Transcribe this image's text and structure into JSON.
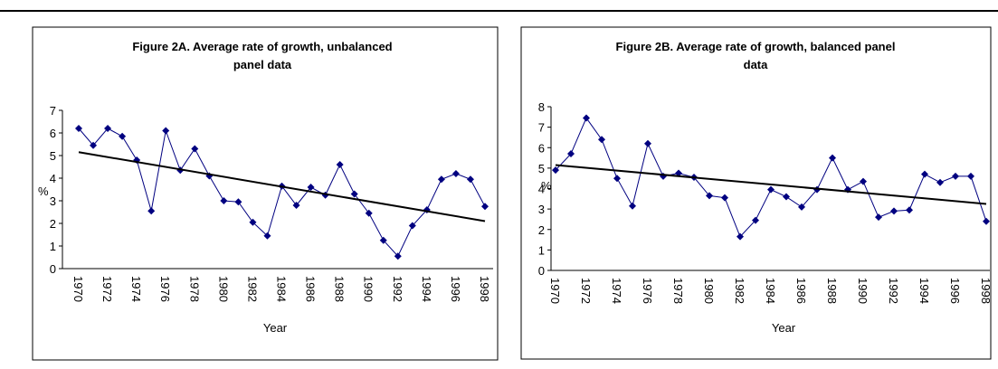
{
  "chart_data": [
    {
      "type": "line",
      "title": [
        "Figure 2A. Average rate of growth, unbalanced",
        "panel data"
      ],
      "x_label": "Year",
      "y_label": "%",
      "x": [
        1970,
        1971,
        1972,
        1973,
        1974,
        1975,
        1976,
        1977,
        1978,
        1979,
        1980,
        1981,
        1982,
        1983,
        1984,
        1985,
        1986,
        1987,
        1988,
        1989,
        1990,
        1991,
        1992,
        1993,
        1994,
        1995,
        1996,
        1997,
        1998
      ],
      "xlim": [
        1970,
        1998
      ],
      "xticks": [
        1970,
        1972,
        1974,
        1976,
        1978,
        1980,
        1982,
        1984,
        1986,
        1988,
        1990,
        1992,
        1994,
        1996,
        1998
      ],
      "ylim": [
        0,
        7
      ],
      "yticks": [
        0,
        1,
        2,
        3,
        4,
        5,
        6,
        7
      ],
      "series": [
        {
          "color": "#000080",
          "values": [
            6.2,
            5.45,
            6.2,
            5.85,
            4.8,
            2.55,
            6.1,
            4.35,
            5.3,
            4.1,
            3.0,
            2.95,
            2.05,
            1.45,
            3.65,
            2.8,
            3.6,
            3.25,
            4.6,
            3.3,
            2.45,
            1.25,
            0.55,
            1.9,
            2.6,
            3.95,
            4.2,
            3.95,
            2.75
          ]
        }
      ],
      "trendline": {
        "x": [
          1970,
          1998
        ],
        "values": [
          5.15,
          2.1
        ],
        "color": "#000000"
      }
    },
    {
      "type": "line",
      "title": [
        "Figure 2B. Average rate of growth, balanced panel",
        "data"
      ],
      "x_label": "Year",
      "y_label": "%",
      "x": [
        1970,
        1971,
        1972,
        1973,
        1974,
        1975,
        1976,
        1977,
        1978,
        1979,
        1980,
        1981,
        1982,
        1983,
        1984,
        1985,
        1986,
        1987,
        1988,
        1989,
        1990,
        1991,
        1992,
        1993,
        1994,
        1995,
        1996,
        1997,
        1998
      ],
      "xlim": [
        1970,
        1998
      ],
      "xticks": [
        1970,
        1972,
        1974,
        1976,
        1978,
        1980,
        1982,
        1984,
        1986,
        1988,
        1990,
        1992,
        1994,
        1996,
        1998
      ],
      "ylim": [
        0,
        8
      ],
      "yticks": [
        0,
        1,
        2,
        3,
        4,
        5,
        6,
        7,
        8
      ],
      "series": [
        {
          "color": "#000080",
          "values": [
            4.9,
            5.7,
            7.45,
            6.4,
            4.5,
            3.15,
            6.2,
            4.6,
            4.75,
            4.55,
            3.65,
            3.55,
            1.65,
            2.45,
            3.95,
            3.6,
            3.1,
            3.95,
            5.5,
            3.95,
            4.35,
            2.6,
            2.9,
            2.95,
            4.7,
            4.3,
            4.6,
            4.6,
            2.4
          ]
        }
      ],
      "trendline": {
        "x": [
          1970,
          1998
        ],
        "values": [
          5.15,
          3.25
        ],
        "color": "#000000"
      }
    }
  ]
}
